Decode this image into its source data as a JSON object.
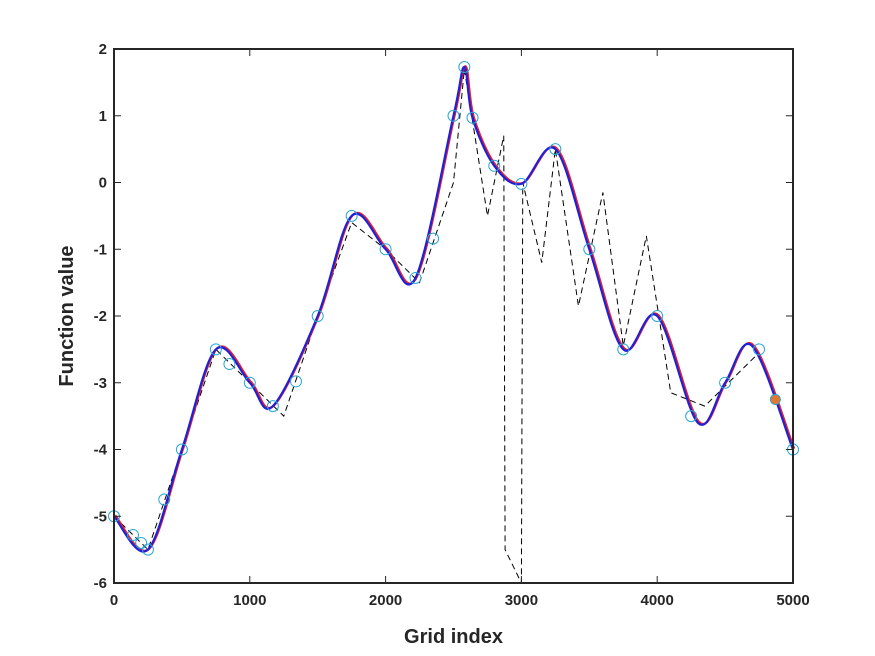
{
  "chart_data": {
    "type": "line",
    "xlabel": "Grid index",
    "ylabel": "Function value",
    "xlim": [
      0,
      5000
    ],
    "ylim": [
      -6,
      2
    ],
    "xticks": [
      0,
      1000,
      2000,
      3000,
      4000,
      5000
    ],
    "yticks": [
      -6,
      -5,
      -4,
      -3,
      -2,
      -1,
      0,
      1,
      2
    ],
    "grid": false,
    "legend": "none",
    "colors": {
      "interp_blue": "#1f1fdc",
      "interp_red": "#e0232f",
      "markers": "#2aa6d8",
      "dashed": "#000000",
      "highlight_fill": "#e5762c"
    },
    "series": [
      {
        "style": "circle-markers",
        "x": [
          0,
          140,
          200,
          250,
          370,
          500,
          750,
          850,
          1000,
          1170,
          1340,
          1500,
          1750,
          2000,
          2220,
          2350,
          2500,
          2580,
          2640,
          2800,
          3000,
          3250,
          3500,
          3750,
          4000,
          4250,
          4500,
          4750,
          5000
        ],
        "y": [
          -5.0,
          -5.28,
          -5.4,
          -5.5,
          -4.75,
          -4.0,
          -2.5,
          -2.72,
          -3.0,
          -3.35,
          -2.98,
          -2.0,
          -0.5,
          -1.0,
          -1.43,
          -0.84,
          1.0,
          1.73,
          0.97,
          0.25,
          -0.02,
          0.5,
          -1.0,
          -2.5,
          -2.0,
          -3.5,
          -3.0,
          -2.5,
          -4.0
        ]
      },
      {
        "style": "dashed-line",
        "x": [
          0,
          250,
          500,
          750,
          1000,
          1250,
          1500,
          1750,
          2000,
          2250,
          2500,
          2580,
          2750,
          2870,
          2880,
          3000,
          3010,
          3150,
          3250,
          3420,
          3600,
          3750,
          3920,
          4100,
          4350,
          4750,
          5000
        ],
        "y": [
          -5.0,
          -5.5,
          -4.0,
          -2.5,
          -3.0,
          -3.5,
          -2.0,
          -0.6,
          -1.0,
          -1.5,
          0.0,
          1.7,
          -0.5,
          0.7,
          -5.5,
          -6.0,
          0.0,
          -1.2,
          0.5,
          -1.85,
          -0.15,
          -2.45,
          -0.8,
          -3.15,
          -3.35,
          -2.55,
          -4.0
        ]
      },
      {
        "style": "smooth-line-red",
        "x": [
          0,
          250,
          500,
          750,
          1000,
          1170,
          1500,
          1750,
          2000,
          2220,
          2500,
          2580,
          2640,
          2800,
          3000,
          3250,
          3500,
          3750,
          4000,
          4300,
          4500,
          4700,
          5000
        ],
        "y": [
          -5.0,
          -5.5,
          -4.0,
          -2.5,
          -3.0,
          -3.35,
          -2.0,
          -0.5,
          -1.0,
          -1.43,
          1.0,
          1.73,
          0.97,
          0.25,
          -0.02,
          0.5,
          -1.0,
          -2.5,
          -2.0,
          -3.6,
          -3.0,
          -2.45,
          -4.0
        ]
      },
      {
        "style": "smooth-line-blue",
        "x": [
          0,
          250,
          500,
          750,
          1000,
          1170,
          1500,
          1750,
          2000,
          2220,
          2500,
          2580,
          2640,
          2800,
          3000,
          3250,
          3500,
          3750,
          4000,
          4300,
          4500,
          4700,
          5000
        ],
        "y": [
          -5.0,
          -5.5,
          -4.0,
          -2.5,
          -3.0,
          -3.35,
          -2.0,
          -0.5,
          -1.0,
          -1.43,
          1.0,
          1.73,
          0.97,
          0.25,
          -0.02,
          0.5,
          -1.0,
          -2.5,
          -2.0,
          -3.6,
          -3.0,
          -2.45,
          -4.0
        ]
      },
      {
        "style": "filled-point",
        "x": [
          4870
        ],
        "y": [
          -3.25
        ]
      }
    ]
  }
}
